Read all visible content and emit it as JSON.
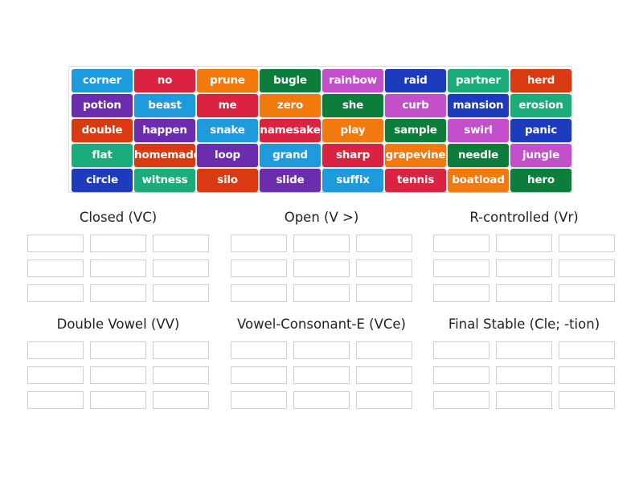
{
  "palette": {
    "lightblue": "#1e9bdc",
    "red": "#d92341",
    "orange": "#f27a0c",
    "darkgreen": "#0d7d3c",
    "magenta": "#c44fcb",
    "navy": "#1d3bbd",
    "teal": "#1aac7b",
    "redorange": "#d93a12",
    "purple": "#6b2cad"
  },
  "tiles": [
    [
      {
        "word": "corner",
        "color": "lightblue"
      },
      {
        "word": "no",
        "color": "red"
      },
      {
        "word": "prune",
        "color": "orange"
      },
      {
        "word": "bugle",
        "color": "darkgreen"
      },
      {
        "word": "rainbow",
        "color": "magenta"
      },
      {
        "word": "raid",
        "color": "navy"
      },
      {
        "word": "partner",
        "color": "teal"
      },
      {
        "word": "herd",
        "color": "redorange"
      }
    ],
    [
      {
        "word": "potion",
        "color": "purple"
      },
      {
        "word": "beast",
        "color": "lightblue"
      },
      {
        "word": "me",
        "color": "red"
      },
      {
        "word": "zero",
        "color": "orange"
      },
      {
        "word": "she",
        "color": "darkgreen"
      },
      {
        "word": "curb",
        "color": "magenta"
      },
      {
        "word": "mansion",
        "color": "navy"
      },
      {
        "word": "erosion",
        "color": "teal"
      }
    ],
    [
      {
        "word": "double",
        "color": "redorange"
      },
      {
        "word": "happen",
        "color": "purple"
      },
      {
        "word": "snake",
        "color": "lightblue"
      },
      {
        "word": "namesake",
        "color": "red"
      },
      {
        "word": "play",
        "color": "orange"
      },
      {
        "word": "sample",
        "color": "darkgreen"
      },
      {
        "word": "swirl",
        "color": "magenta"
      },
      {
        "word": "panic",
        "color": "navy"
      }
    ],
    [
      {
        "word": "flat",
        "color": "teal"
      },
      {
        "word": "homemade",
        "color": "redorange"
      },
      {
        "word": "loop",
        "color": "purple"
      },
      {
        "word": "grand",
        "color": "lightblue"
      },
      {
        "word": "sharp",
        "color": "red"
      },
      {
        "word": "grapevine",
        "color": "orange"
      },
      {
        "word": "needle",
        "color": "darkgreen"
      },
      {
        "word": "jungle",
        "color": "magenta"
      }
    ],
    [
      {
        "word": "circle",
        "color": "navy"
      },
      {
        "word": "witness",
        "color": "teal"
      },
      {
        "word": "silo",
        "color": "redorange"
      },
      {
        "word": "slide",
        "color": "purple"
      },
      {
        "word": "suffix",
        "color": "lightblue"
      },
      {
        "word": "tennis",
        "color": "red"
      },
      {
        "word": "boatload",
        "color": "orange"
      },
      {
        "word": "hero",
        "color": "darkgreen"
      }
    ]
  ],
  "groups": [
    {
      "title": "Closed (VC)"
    },
    {
      "title": "Open (V >)"
    },
    {
      "title": "R-controlled (Vr)"
    },
    {
      "title": "Double Vowel (VV)"
    },
    {
      "title": "Vowel-Consonant-E (VCe)"
    },
    {
      "title": "Final Stable (Cle; -tion)"
    }
  ]
}
